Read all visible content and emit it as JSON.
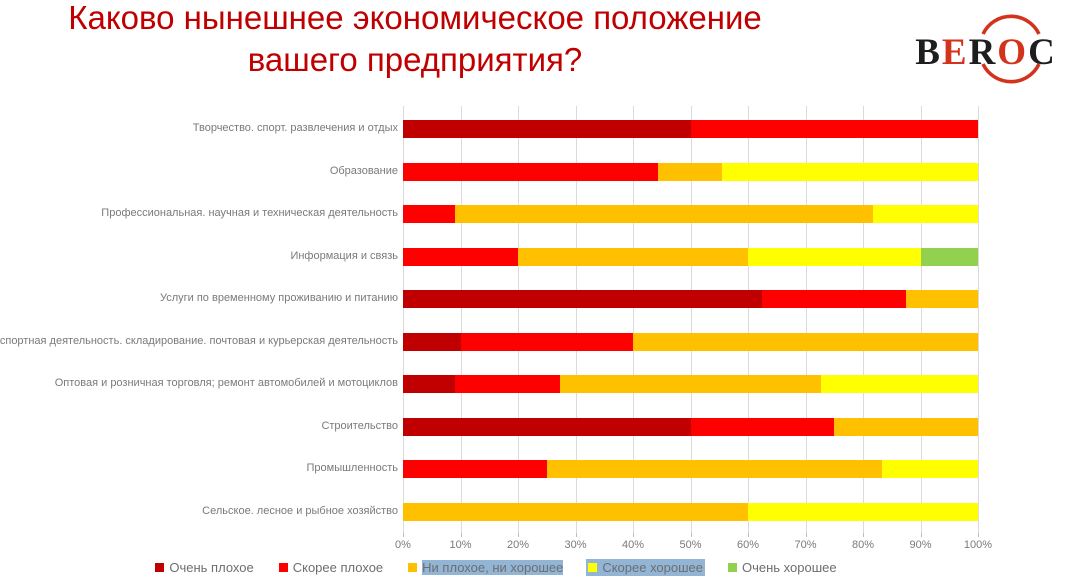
{
  "title": {
    "line1": "Каково нынешнее экономическое положение",
    "line2": "вашего предприятия?"
  },
  "logo": {
    "text": "BEROC",
    "letters": [
      {
        "ch": "B",
        "tone": "dark"
      },
      {
        "ch": "E",
        "tone": "red"
      },
      {
        "ch": "R",
        "tone": "dark"
      },
      {
        "ch": "O",
        "tone": "red"
      },
      {
        "ch": "C",
        "tone": "dark"
      }
    ],
    "red": "#D3331C",
    "black": "#1E1E1E"
  },
  "chart_data": {
    "type": "bar",
    "stacked": true,
    "orientation": "horizontal",
    "title": "Каково нынешнее экономическое положение вашего предприятия?",
    "xlabel": "",
    "ylabel": "",
    "xlim": [
      0,
      100
    ],
    "grid": true,
    "legend_position": "bottom",
    "categories": [
      "Творчество. спорт. развлечения и отдых",
      "Образование",
      "Профессиональная. научная и техническая деятельность",
      "Информация и связь",
      "Услуги по временному проживанию и питанию",
      "спортная деятельность. складирование. почтовая и курьерская деятельность",
      "Оптовая и розничная торговля; ремонт автомобилей и мотоциклов",
      "Строительство",
      "Промышленность",
      "Сельское. лесное и рыбное хозяйство"
    ],
    "series": [
      {
        "name": "Очень плохое",
        "color": "#C00000",
        "values": [
          50,
          0,
          0,
          0,
          62.5,
          10,
          9.1,
          50,
          0,
          0
        ]
      },
      {
        "name": "Скорее плохое",
        "color": "#FF0000",
        "values": [
          50,
          44.4,
          9.1,
          20,
          25,
          30,
          18.2,
          25,
          25,
          0
        ]
      },
      {
        "name": "Ни плохое, ни хорошее",
        "color": "#FFC000",
        "values": [
          0,
          11.1,
          72.7,
          40,
          12.5,
          60,
          45.4,
          25,
          58.3,
          60
        ]
      },
      {
        "name": "Скорее хорошее",
        "color": "#FFFF00",
        "values": [
          0,
          44.5,
          18.2,
          30,
          0,
          0,
          27.3,
          0,
          16.7,
          40
        ]
      },
      {
        "name": "Очень хорошее",
        "color": "#92D050",
        "values": [
          0,
          0,
          0,
          10,
          0,
          0,
          0,
          0,
          0,
          0
        ]
      }
    ],
    "x_axis": {
      "ticks": [
        "0%",
        "10%",
        "20%",
        "30%",
        "40%",
        "50%",
        "60%",
        "70%",
        "80%",
        "90%",
        "100%"
      ]
    }
  },
  "legend": {
    "items": [
      {
        "label": "Очень плохое",
        "color": "#C00000",
        "highlight": "none"
      },
      {
        "label": "Скорее плохое",
        "color": "#FF0000",
        "highlight": "none"
      },
      {
        "label": "Ни плохое, ни хорошее",
        "color": "#FFC000",
        "highlight": "text"
      },
      {
        "label": "Скорее хорошее",
        "color": "#FFFF00",
        "highlight": "full"
      },
      {
        "label": "Очень хорошее",
        "color": "#92D050",
        "highlight": "none"
      }
    ],
    "highlight_color": "#92B4D5"
  }
}
